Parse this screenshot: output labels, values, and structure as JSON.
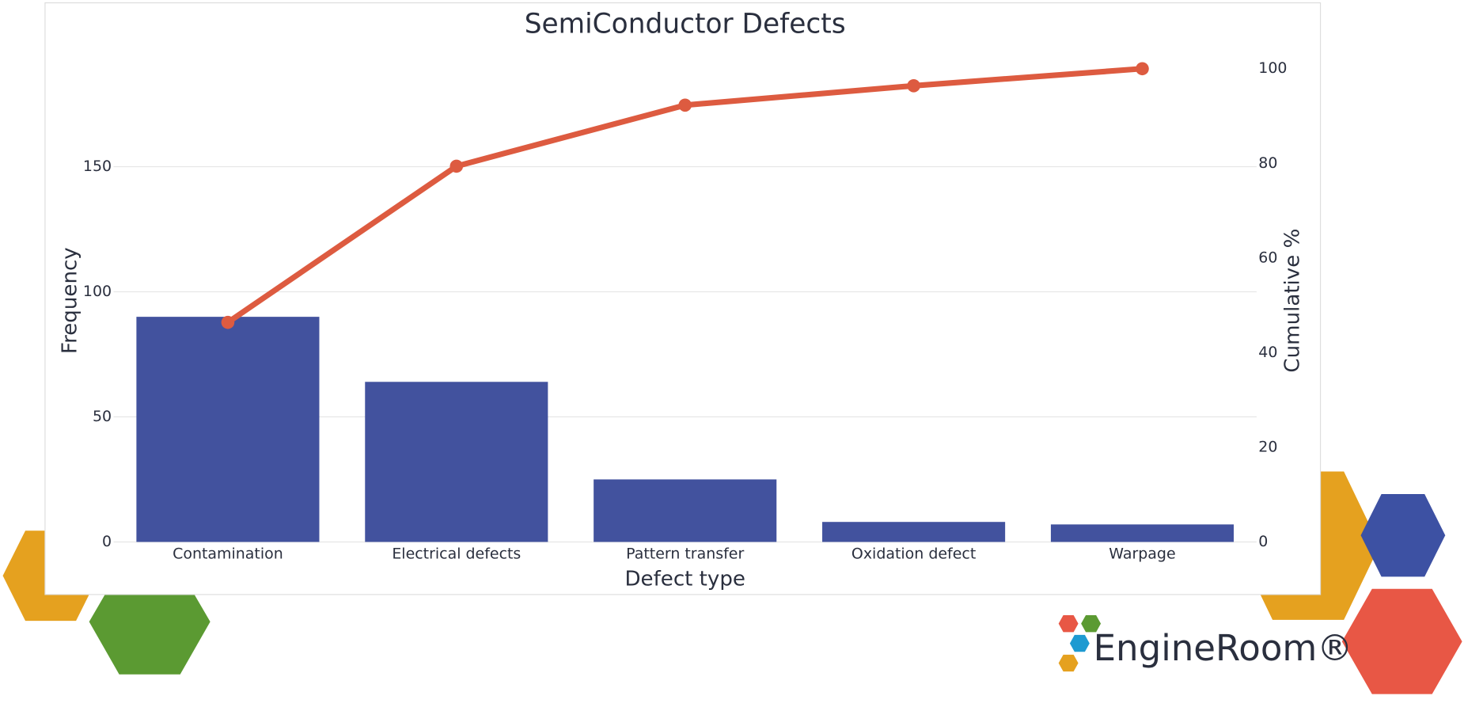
{
  "chart_data": {
    "type": "bar",
    "title": "SemiConductor Defects",
    "x_label": "Defect type",
    "y_label": "Frequency",
    "y2_label": "Cumulative %",
    "categories": [
      "Contamination",
      "Electrical defects",
      "Pattern transfer",
      "Oxidation defect",
      "Warpage"
    ],
    "series": [
      {
        "type": "bar",
        "color": "#42529e",
        "values": [
          90,
          64,
          25,
          8,
          7
        ]
      },
      {
        "type": "line",
        "axis": "y2",
        "color": "#dd5b40",
        "values": [
          46.4,
          79.4,
          92.3,
          96.4,
          100
        ]
      }
    ],
    "ylim": [
      0,
      196
    ],
    "yticks": [
      0,
      50,
      100,
      150
    ],
    "y2lim": [
      0,
      103.6
    ],
    "y2ticks": [
      0,
      20,
      40,
      60,
      80,
      100
    ],
    "grid": true
  },
  "logo": {
    "text": "EngineRoom®"
  }
}
